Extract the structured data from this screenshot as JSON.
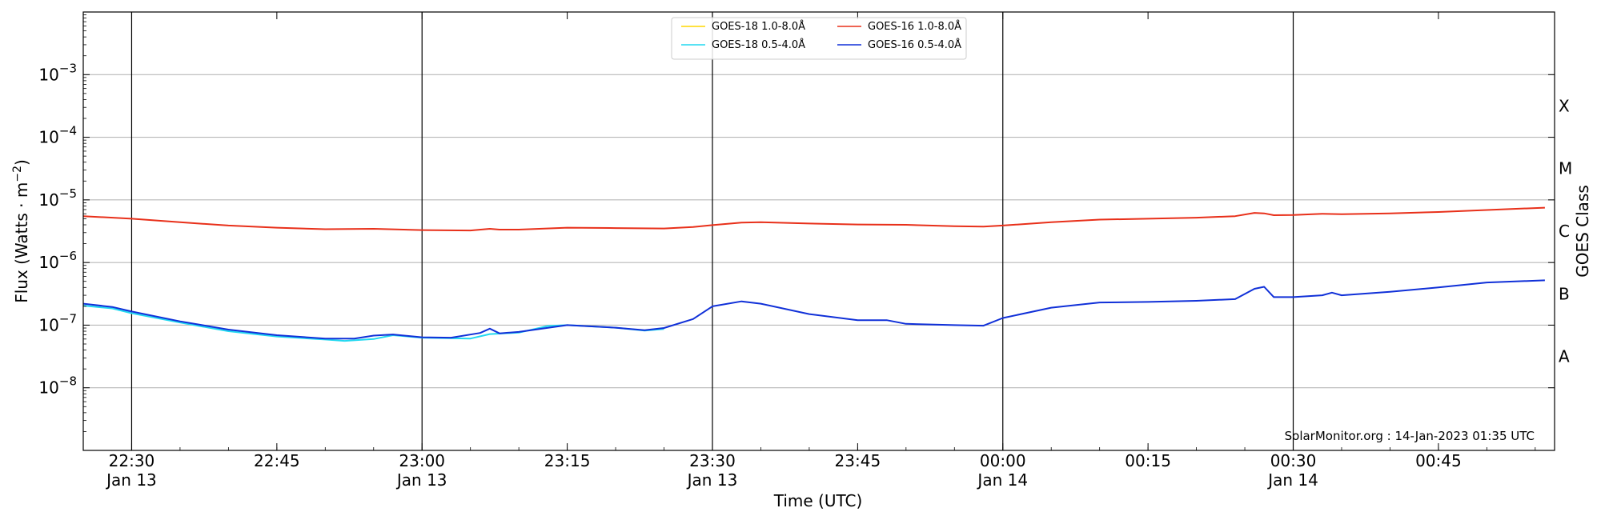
{
  "chart_data": {
    "type": "line",
    "xlabel": "Time (UTC)",
    "ylabel": "Flux (Watts · m",
    "ylabel_sup": "−2",
    "ylabel_close": ")",
    "y2label": "GOES Class",
    "yscale": "log",
    "ylim": [
      1e-09,
      0.01
    ],
    "xlim": [
      "2023-01-13 22:25",
      "2023-01-14 00:57"
    ],
    "grid": "horizontal",
    "legend_position": "top-center",
    "credit": "SolarMonitor.org : 14-Jan-2023 01:35 UTC",
    "y_ticks": [
      {
        "value": 1e-08,
        "base": "10",
        "exp": "−8"
      },
      {
        "value": 1e-07,
        "base": "10",
        "exp": "−7"
      },
      {
        "value": 1e-06,
        "base": "10",
        "exp": "−6"
      },
      {
        "value": 1e-05,
        "base": "10",
        "exp": "−5"
      },
      {
        "value": 0.0001,
        "base": "10",
        "exp": "−4"
      },
      {
        "value": 0.001,
        "base": "10",
        "exp": "−3"
      }
    ],
    "class_labels": [
      {
        "label": "A",
        "value": 3.16e-08
      },
      {
        "label": "B",
        "value": 3.16e-07
      },
      {
        "label": "C",
        "value": 3.16e-06
      },
      {
        "label": "M",
        "value": 3.16e-05
      },
      {
        "label": "X",
        "value": 0.000316
      }
    ],
    "x_ticks": [
      {
        "time": "2023-01-13 22:30",
        "label": "22:30",
        "date": "Jan 13",
        "vline": true
      },
      {
        "time": "2023-01-13 22:45",
        "label": "22:45",
        "date": "",
        "vline": false
      },
      {
        "time": "2023-01-13 23:00",
        "label": "23:00",
        "date": "Jan 13",
        "vline": true
      },
      {
        "time": "2023-01-13 23:15",
        "label": "23:15",
        "date": "",
        "vline": false
      },
      {
        "time": "2023-01-13 23:30",
        "label": "23:30",
        "date": "Jan 13",
        "vline": true
      },
      {
        "time": "2023-01-13 23:45",
        "label": "23:45",
        "date": "",
        "vline": false
      },
      {
        "time": "2023-01-14 00:00",
        "label": "00:00",
        "date": "Jan 14",
        "vline": true
      },
      {
        "time": "2023-01-14 00:15",
        "label": "00:15",
        "date": "",
        "vline": false
      },
      {
        "time": "2023-01-14 00:30",
        "label": "00:30",
        "date": "Jan 14",
        "vline": true
      },
      {
        "time": "2023-01-14 00:45",
        "label": "00:45",
        "date": "",
        "vline": false
      }
    ],
    "series": [
      {
        "name": "GOES-18 1.0-8.0Å",
        "color": "#ffd700",
        "points": []
      },
      {
        "name": "GOES-18 0.5-4.0Å",
        "color": "#22d8f0",
        "points": [
          [
            "2023-01-13 22:25",
            2.05e-07
          ],
          [
            "2023-01-13 22:28",
            1.85e-07
          ],
          [
            "2023-01-13 22:30",
            1.55e-07
          ],
          [
            "2023-01-13 22:35",
            1.1e-07
          ],
          [
            "2023-01-13 22:40",
            8e-08
          ],
          [
            "2023-01-13 22:45",
            6.6e-08
          ],
          [
            "2023-01-13 22:50",
            5.9e-08
          ],
          [
            "2023-01-13 22:52",
            5.6e-08
          ],
          [
            "2023-01-13 22:55",
            6e-08
          ],
          [
            "2023-01-13 22:57",
            6.9e-08
          ],
          [
            "2023-01-13 23:00",
            6.3e-08
          ],
          [
            "2023-01-13 23:05",
            6.1e-08
          ],
          [
            "2023-01-13 23:07",
            7.2e-08
          ],
          [
            "2023-01-13 23:10",
            7.6e-08
          ],
          [
            "2023-01-13 23:13",
            9.7e-08
          ],
          [
            "2023-01-13 23:15",
            1e-07
          ],
          [
            "2023-01-13 23:20",
            9.1e-08
          ],
          [
            "2023-01-13 23:23",
            8.2e-08
          ],
          [
            "2023-01-13 23:25",
            8.7e-08
          ]
        ]
      },
      {
        "name": "GOES-16 1.0-8.0Å",
        "color": "#e8301a",
        "points": [
          [
            "2023-01-13 22:25",
            5.5e-06
          ],
          [
            "2023-01-13 22:30",
            5e-06
          ],
          [
            "2023-01-13 22:35",
            4.4e-06
          ],
          [
            "2023-01-13 22:40",
            3.9e-06
          ],
          [
            "2023-01-13 22:45",
            3.6e-06
          ],
          [
            "2023-01-13 22:50",
            3.4e-06
          ],
          [
            "2023-01-13 22:55",
            3.45e-06
          ],
          [
            "2023-01-13 23:00",
            3.3e-06
          ],
          [
            "2023-01-13 23:05",
            3.25e-06
          ],
          [
            "2023-01-13 23:07",
            3.45e-06
          ],
          [
            "2023-01-13 23:08",
            3.35e-06
          ],
          [
            "2023-01-13 23:10",
            3.35e-06
          ],
          [
            "2023-01-13 23:15",
            3.6e-06
          ],
          [
            "2023-01-13 23:20",
            3.55e-06
          ],
          [
            "2023-01-13 23:25",
            3.5e-06
          ],
          [
            "2023-01-13 23:28",
            3.7e-06
          ],
          [
            "2023-01-13 23:30",
            3.95e-06
          ],
          [
            "2023-01-13 23:33",
            4.35e-06
          ],
          [
            "2023-01-13 23:35",
            4.4e-06
          ],
          [
            "2023-01-13 23:40",
            4.2e-06
          ],
          [
            "2023-01-13 23:45",
            4.05e-06
          ],
          [
            "2023-01-13 23:50",
            4e-06
          ],
          [
            "2023-01-13 23:55",
            3.8e-06
          ],
          [
            "2023-01-13 23:58",
            3.75e-06
          ],
          [
            "2023-01-14 00:00",
            3.9e-06
          ],
          [
            "2023-01-14 00:05",
            4.4e-06
          ],
          [
            "2023-01-14 00:10",
            4.85e-06
          ],
          [
            "2023-01-14 00:15",
            5e-06
          ],
          [
            "2023-01-14 00:20",
            5.2e-06
          ],
          [
            "2023-01-14 00:24",
            5.5e-06
          ],
          [
            "2023-01-14 00:26",
            6.2e-06
          ],
          [
            "2023-01-14 00:27",
            6.1e-06
          ],
          [
            "2023-01-14 00:28",
            5.7e-06
          ],
          [
            "2023-01-14 00:30",
            5.75e-06
          ],
          [
            "2023-01-14 00:33",
            6e-06
          ],
          [
            "2023-01-14 00:35",
            5.9e-06
          ],
          [
            "2023-01-14 00:40",
            6.1e-06
          ],
          [
            "2023-01-14 00:45",
            6.4e-06
          ],
          [
            "2023-01-14 00:50",
            6.9e-06
          ],
          [
            "2023-01-14 00:56",
            7.5e-06
          ]
        ]
      },
      {
        "name": "GOES-16 0.5-4.0Å",
        "color": "#1030d8",
        "points": [
          [
            "2023-01-13 22:25",
            2.2e-07
          ],
          [
            "2023-01-13 22:28",
            1.95e-07
          ],
          [
            "2023-01-13 22:30",
            1.65e-07
          ],
          [
            "2023-01-13 22:35",
            1.15e-07
          ],
          [
            "2023-01-13 22:40",
            8.5e-08
          ],
          [
            "2023-01-13 22:45",
            6.9e-08
          ],
          [
            "2023-01-13 22:50",
            6.1e-08
          ],
          [
            "2023-01-13 22:53",
            6.1e-08
          ],
          [
            "2023-01-13 22:55",
            6.8e-08
          ],
          [
            "2023-01-13 22:57",
            7.1e-08
          ],
          [
            "2023-01-13 23:00",
            6.4e-08
          ],
          [
            "2023-01-13 23:03",
            6.3e-08
          ],
          [
            "2023-01-13 23:06",
            7.5e-08
          ],
          [
            "2023-01-13 23:07",
            8.8e-08
          ],
          [
            "2023-01-13 23:08",
            7.4e-08
          ],
          [
            "2023-01-13 23:10",
            7.8e-08
          ],
          [
            "2023-01-13 23:15",
            1e-07
          ],
          [
            "2023-01-13 23:20",
            9.1e-08
          ],
          [
            "2023-01-13 23:23",
            8.3e-08
          ],
          [
            "2023-01-13 23:25",
            9e-08
          ],
          [
            "2023-01-13 23:28",
            1.25e-07
          ],
          [
            "2023-01-13 23:30",
            2e-07
          ],
          [
            "2023-01-13 23:33",
            2.4e-07
          ],
          [
            "2023-01-13 23:35",
            2.2e-07
          ],
          [
            "2023-01-13 23:40",
            1.5e-07
          ],
          [
            "2023-01-13 23:45",
            1.2e-07
          ],
          [
            "2023-01-13 23:48",
            1.2e-07
          ],
          [
            "2023-01-13 23:50",
            1.05e-07
          ],
          [
            "2023-01-13 23:55",
            1e-07
          ],
          [
            "2023-01-13 23:58",
            9.8e-08
          ],
          [
            "2023-01-14 00:00",
            1.3e-07
          ],
          [
            "2023-01-14 00:05",
            1.9e-07
          ],
          [
            "2023-01-14 00:10",
            2.3e-07
          ],
          [
            "2023-01-14 00:15",
            2.35e-07
          ],
          [
            "2023-01-14 00:20",
            2.45e-07
          ],
          [
            "2023-01-14 00:24",
            2.6e-07
          ],
          [
            "2023-01-14 00:26",
            3.8e-07
          ],
          [
            "2023-01-14 00:27",
            4.1e-07
          ],
          [
            "2023-01-14 00:28",
            2.8e-07
          ],
          [
            "2023-01-14 00:30",
            2.8e-07
          ],
          [
            "2023-01-14 00:33",
            3e-07
          ],
          [
            "2023-01-14 00:34",
            3.3e-07
          ],
          [
            "2023-01-14 00:35",
            3e-07
          ],
          [
            "2023-01-14 00:40",
            3.4e-07
          ],
          [
            "2023-01-14 00:45",
            4e-07
          ],
          [
            "2023-01-14 00:50",
            4.8e-07
          ],
          [
            "2023-01-14 00:56",
            5.2e-07
          ]
        ]
      }
    ]
  }
}
